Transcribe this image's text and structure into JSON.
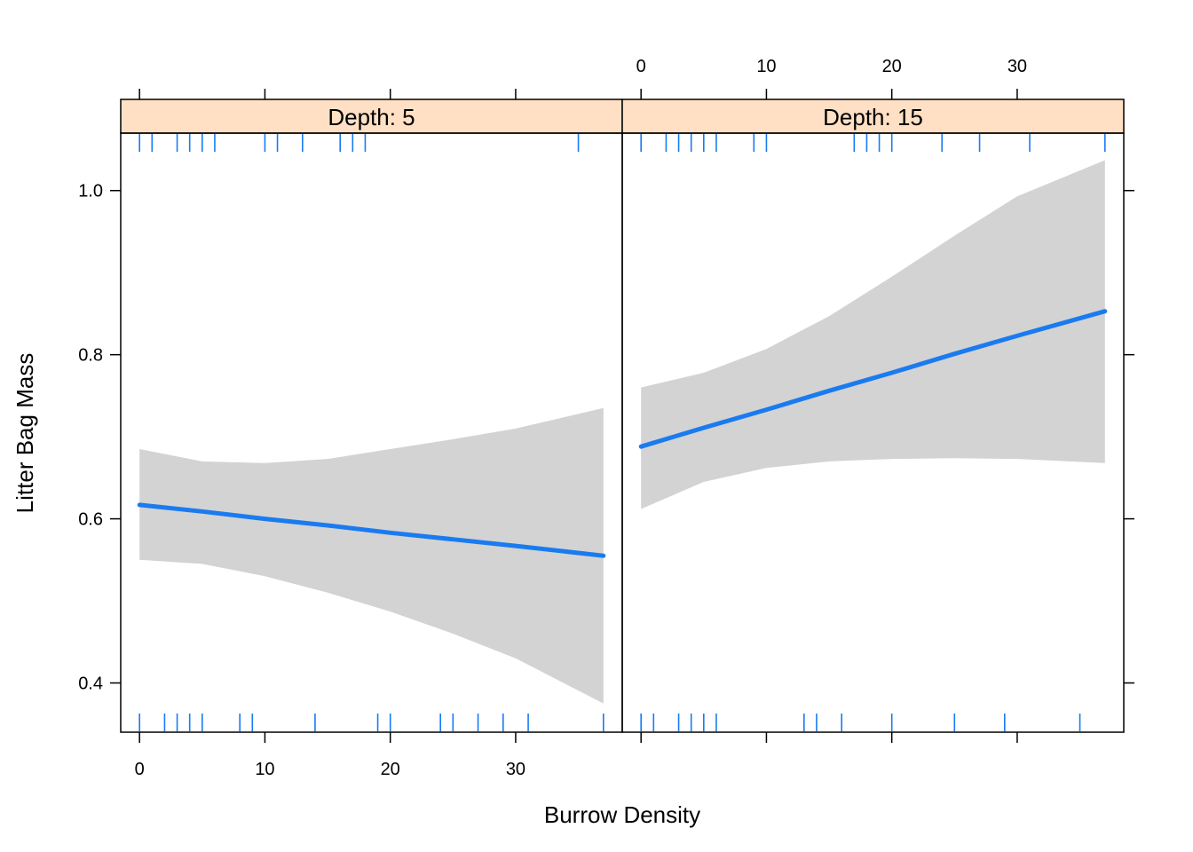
{
  "chart_data": {
    "type": "line",
    "xlabel": "Burrow Density",
    "ylabel": "Litter Bag Mass",
    "xlim": [
      -1.5,
      38.5
    ],
    "ylim": [
      0.34,
      1.07
    ],
    "x_ticks": [
      0,
      10,
      20,
      30
    ],
    "y_ticks": [
      0.4,
      0.6,
      0.8,
      1.0
    ],
    "y_tick_labels": [
      "0.4",
      "0.6",
      "0.8",
      "1.0"
    ],
    "colors": {
      "line": "#1a7bf0",
      "band": "#d3d3d3",
      "strip": "#ffe0c4",
      "rug": "#1a7bf0"
    },
    "panels": [
      {
        "strip_label": "Depth: 5",
        "x": [
          0,
          5,
          10,
          15,
          20,
          25,
          30,
          37
        ],
        "fit": [
          0.617,
          0.609,
          0.6,
          0.592,
          0.583,
          0.575,
          0.567,
          0.555
        ],
        "lower": [
          0.55,
          0.545,
          0.53,
          0.51,
          0.487,
          0.46,
          0.43,
          0.375
        ],
        "upper": [
          0.685,
          0.67,
          0.668,
          0.673,
          0.685,
          0.697,
          0.71,
          0.735
        ],
        "rug_top": [
          0,
          1,
          3,
          4,
          5,
          6,
          10,
          11,
          13,
          16,
          17,
          18,
          35
        ],
        "rug_bottom": [
          0,
          2,
          3,
          4,
          5,
          8,
          9,
          14,
          19,
          20,
          24,
          25,
          27,
          29,
          31,
          37
        ]
      },
      {
        "strip_label": "Depth: 15",
        "x": [
          0,
          5,
          10,
          15,
          20,
          25,
          30,
          37
        ],
        "fit": [
          0.688,
          0.711,
          0.733,
          0.756,
          0.778,
          0.801,
          0.823,
          0.853
        ],
        "lower": [
          0.612,
          0.645,
          0.662,
          0.67,
          0.673,
          0.674,
          0.673,
          0.668
        ],
        "upper": [
          0.76,
          0.778,
          0.807,
          0.847,
          0.895,
          0.945,
          0.993,
          1.037
        ],
        "rug_top": [
          0,
          2,
          3,
          4,
          5,
          6,
          9,
          10,
          17,
          18,
          19,
          20,
          24,
          27,
          31,
          37
        ],
        "rug_bottom": [
          0,
          1,
          3,
          4,
          5,
          6,
          13,
          14,
          16,
          20,
          25,
          29,
          35
        ]
      }
    ]
  }
}
